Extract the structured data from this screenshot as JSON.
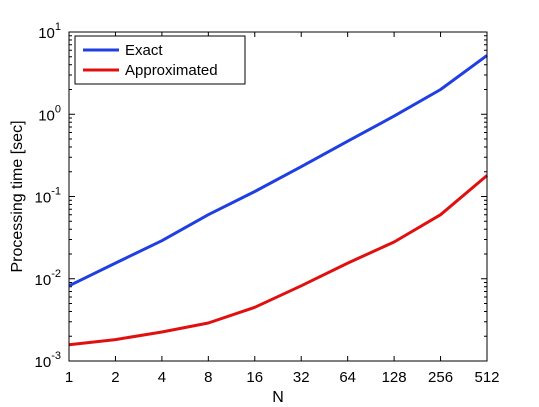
{
  "chart_data": {
    "type": "line",
    "xlabel": "N",
    "ylabel": "Processing time [sec]",
    "y_scale": "log",
    "x_scale": "log2",
    "x": [
      1,
      2,
      4,
      8,
      16,
      32,
      64,
      128,
      256,
      512
    ],
    "x_tick_labels": [
      "1",
      "2",
      "4",
      "8",
      "16",
      "32",
      "64",
      "128",
      "256",
      "512"
    ],
    "xlim": [
      1,
      512
    ],
    "ylim": [
      0.001,
      10
    ],
    "y_tick_values": [
      0.001,
      0.01,
      0.1,
      1,
      10
    ],
    "y_tick_exponents": [
      "-3",
      "-2",
      "-1",
      "0",
      "1"
    ],
    "y_tick_base": "10",
    "grid": false,
    "legend_position": "top-left",
    "series": [
      {
        "name": "Exact",
        "color": "#1f3fe0",
        "values": [
          0.0082,
          0.0155,
          0.029,
          0.06,
          0.115,
          0.23,
          0.47,
          0.95,
          2.0,
          5.2
        ]
      },
      {
        "name": "Approximated",
        "color": "#e01010",
        "values": [
          0.00158,
          0.00182,
          0.00225,
          0.0029,
          0.0045,
          0.0082,
          0.0155,
          0.028,
          0.06,
          0.18
        ]
      }
    ]
  }
}
